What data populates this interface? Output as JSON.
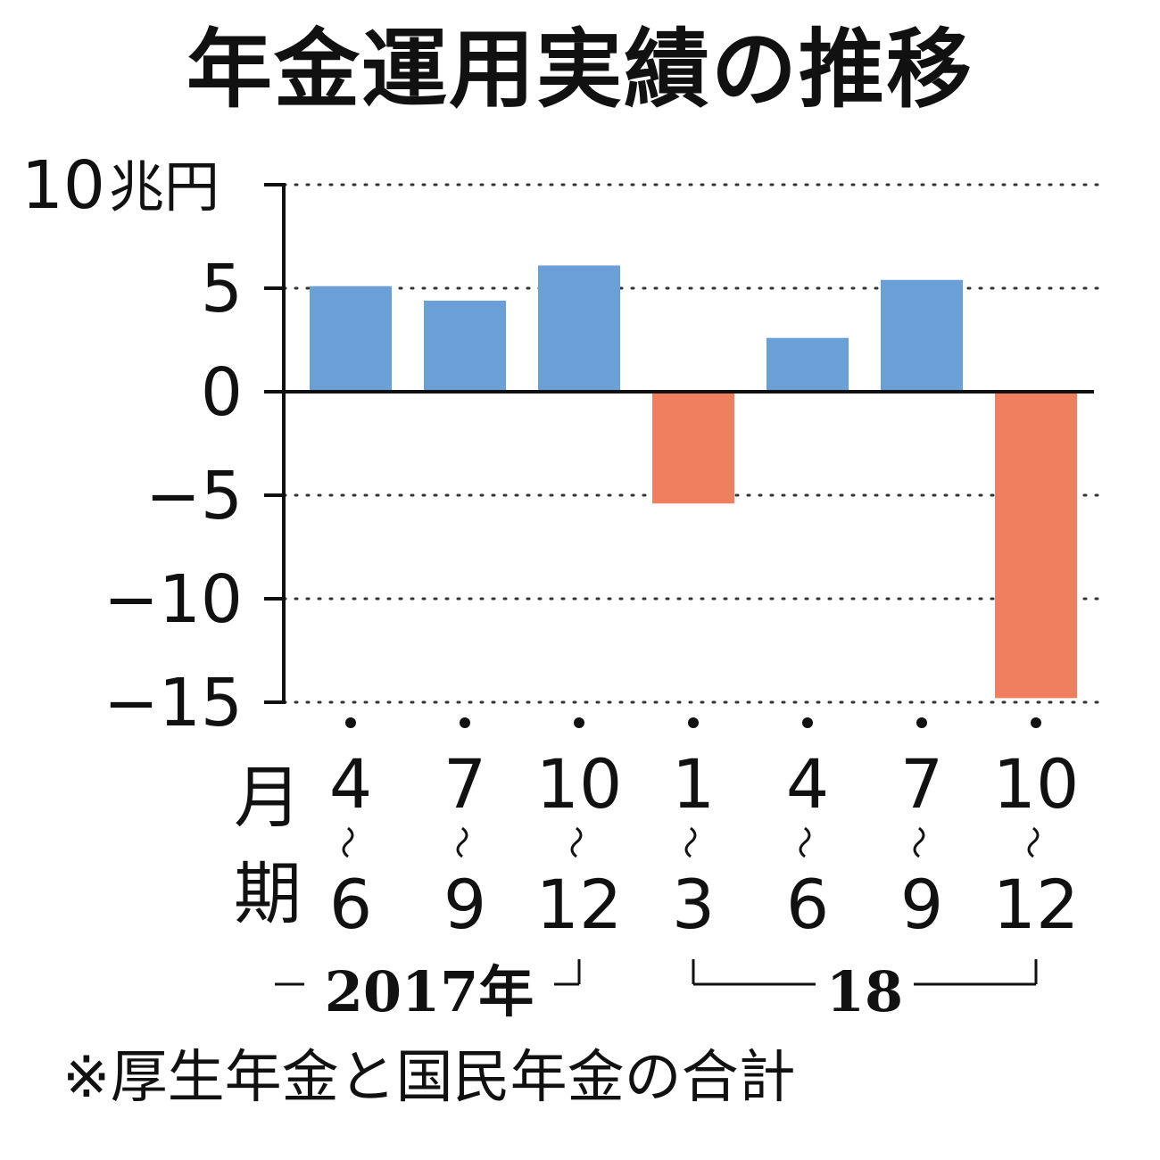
{
  "title": "年金運用実績の推移",
  "footnote": "※厚生年金と国民年金の合計",
  "colors": {
    "positive": "#6b9fd8",
    "negative": "#ef7f5e",
    "axis": "#111111",
    "grid": "#333333"
  },
  "chart_data": {
    "type": "bar",
    "title": "年金運用実績の推移",
    "yunit": "兆円",
    "ylabel": "",
    "ylim": [
      -15,
      10
    ],
    "yticks": [
      10,
      5,
      0,
      -5,
      -10,
      -15
    ],
    "grid": true,
    "xlabel": "月期",
    "categories": [
      {
        "start": "4",
        "end": "6"
      },
      {
        "start": "7",
        "end": "9"
      },
      {
        "start": "10",
        "end": "12"
      },
      {
        "start": "1",
        "end": "3"
      },
      {
        "start": "4",
        "end": "6"
      },
      {
        "start": "7",
        "end": "9"
      },
      {
        "start": "10",
        "end": "12"
      }
    ],
    "values": [
      5.1,
      4.4,
      6.1,
      -5.4,
      2.6,
      5.4,
      -14.8
    ],
    "years": [
      {
        "label": "2017年",
        "first": 0,
        "last": 2
      },
      {
        "label": "18",
        "first": 3,
        "last": 6
      }
    ]
  }
}
